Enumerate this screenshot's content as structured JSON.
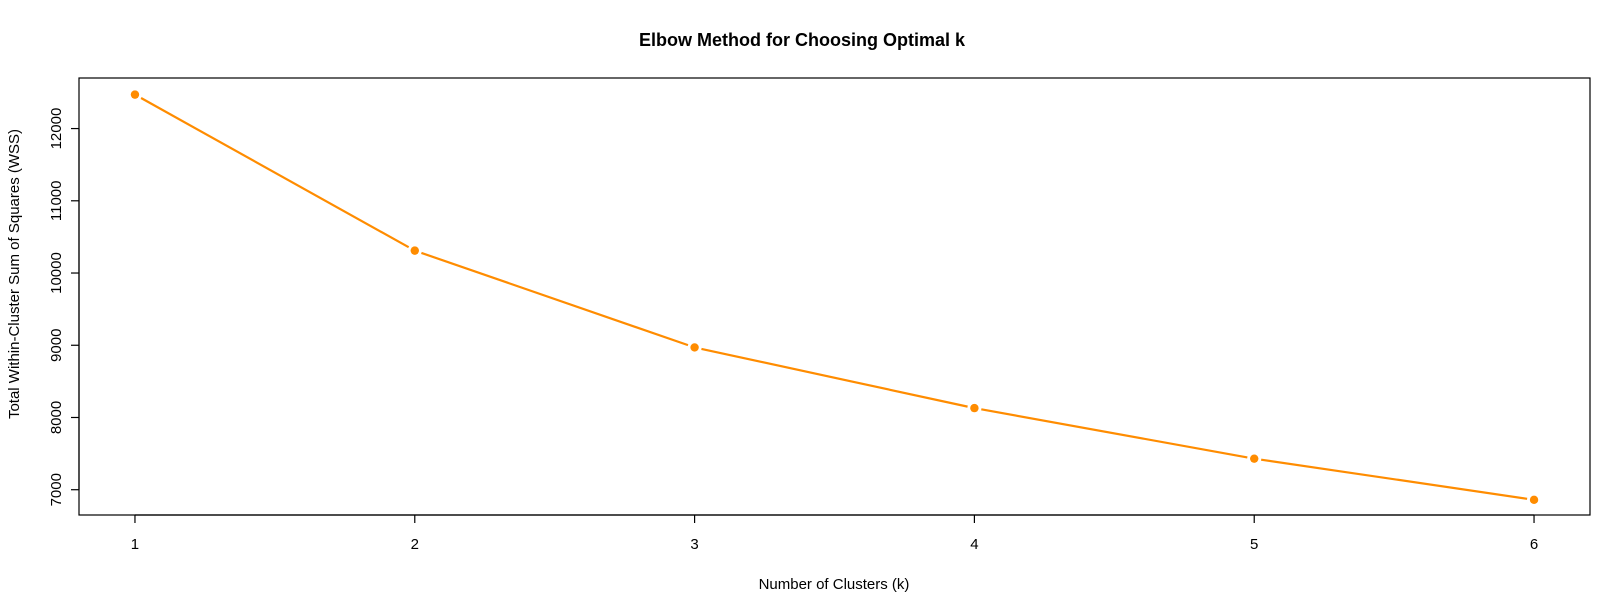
{
  "chart_data": {
    "type": "line",
    "title": "Elbow Method for Choosing Optimal k",
    "xlabel": "Number of Clusters (k)",
    "ylabel": "Total Within-Cluster Sum of Squares (WSS)",
    "x": [
      1,
      2,
      3,
      4,
      5,
      6
    ],
    "x_ticks": [
      1,
      2,
      3,
      4,
      5,
      6
    ],
    "y_ticks": [
      7000,
      8000,
      9000,
      10000,
      11000,
      12000
    ],
    "xlim": [
      0.8,
      6.2
    ],
    "ylim": [
      6650,
      12700
    ],
    "series": [
      {
        "values": [
          12470,
          10310,
          8970,
          8130,
          7430,
          6860
        ],
        "color": "#ff8c00"
      }
    ],
    "grid": false,
    "legend": "none"
  }
}
